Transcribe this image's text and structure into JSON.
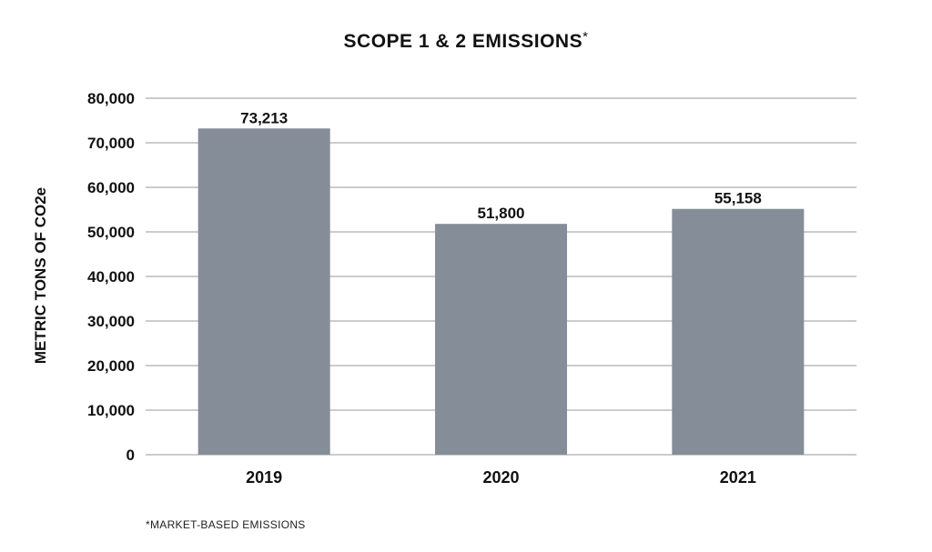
{
  "chart_data": {
    "type": "bar",
    "title": "SCOPE 1 & 2 EMISSIONS",
    "title_suffix": "*",
    "ylabel": "METRIC TONS OF CO2e",
    "xlabel": "",
    "categories": [
      "2019",
      "2020",
      "2021"
    ],
    "values": [
      73213,
      51800,
      55158
    ],
    "value_labels": [
      "73,213",
      "51,800",
      "55,158"
    ],
    "ylim": [
      0,
      80000
    ],
    "yticks": [
      0,
      10000,
      20000,
      30000,
      40000,
      50000,
      60000,
      70000,
      80000
    ],
    "ytick_labels": [
      "0",
      "10,000",
      "20,000",
      "30,000",
      "40,000",
      "50,000",
      "60,000",
      "70,000",
      "80,000"
    ],
    "grid": true,
    "bar_color": "#858d98"
  },
  "footnote": "*MARKET-BASED EMISSIONS"
}
